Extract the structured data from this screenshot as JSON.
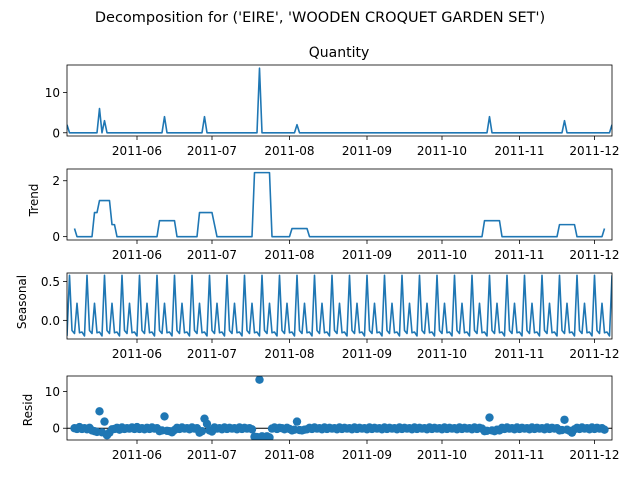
{
  "figure": {
    "suptitle": "Decomposition for ('EIRE', 'WOODEN CROQUET GARDEN SET')",
    "line_color": "#1f77b4"
  },
  "x_ticks": [
    "2011-06",
    "2011-07",
    "2011-08",
    "2011-09",
    "2011-10",
    "2011-11",
    "2011-12"
  ],
  "chart_data": [
    {
      "type": "line",
      "title": "Quantity",
      "ylabel": "",
      "xlim": [
        "2011-05-04",
        "2011-12-08"
      ],
      "ylim": [
        -0.8,
        16.8
      ],
      "yticks": [
        0,
        10
      ],
      "x_ticks": [
        "2011-06-01",
        "2011-07-01",
        "2011-08-01",
        "2011-09-01",
        "2011-10-01",
        "2011-11-01",
        "2011-12-01"
      ],
      "points": [
        [
          "2011-05-04",
          2
        ],
        [
          "2011-05-05",
          0
        ],
        [
          "2011-05-16",
          0
        ],
        [
          "2011-05-17",
          6
        ],
        [
          "2011-05-18",
          0
        ],
        [
          "2011-05-19",
          3
        ],
        [
          "2011-05-20",
          0
        ],
        [
          "2011-06-11",
          0
        ],
        [
          "2011-06-12",
          4
        ],
        [
          "2011-06-13",
          0
        ],
        [
          "2011-06-27",
          0
        ],
        [
          "2011-06-28",
          4
        ],
        [
          "2011-06-29",
          0
        ],
        [
          "2011-07-19",
          0
        ],
        [
          "2011-07-20",
          16
        ],
        [
          "2011-07-21",
          0
        ],
        [
          "2011-08-03",
          0
        ],
        [
          "2011-08-04",
          2
        ],
        [
          "2011-08-05",
          0
        ],
        [
          "2011-10-19",
          0
        ],
        [
          "2011-10-20",
          4
        ],
        [
          "2011-10-21",
          0
        ],
        [
          "2011-11-18",
          0
        ],
        [
          "2011-11-19",
          3
        ],
        [
          "2011-11-20",
          0
        ],
        [
          "2011-12-07",
          0
        ],
        [
          "2011-12-08",
          2
        ]
      ]
    },
    {
      "type": "line",
      "title": "",
      "ylabel": "Trend",
      "xlim": [
        "2011-05-04",
        "2011-12-08"
      ],
      "ylim": [
        -0.12,
        2.42
      ],
      "yticks": [
        0,
        2
      ],
      "x_ticks": [
        "2011-06-01",
        "2011-07-01",
        "2011-08-01",
        "2011-09-01",
        "2011-10-01",
        "2011-11-01",
        "2011-12-01"
      ],
      "points": [
        [
          "2011-05-07",
          0.29
        ],
        [
          "2011-05-08",
          0.0
        ],
        [
          "2011-05-14",
          0.0
        ],
        [
          "2011-05-15",
          0.86
        ],
        [
          "2011-05-16",
          0.86
        ],
        [
          "2011-05-17",
          1.29
        ],
        [
          "2011-05-21",
          1.29
        ],
        [
          "2011-05-22",
          0.43
        ],
        [
          "2011-05-23",
          0.43
        ],
        [
          "2011-05-24",
          0.0
        ],
        [
          "2011-06-09",
          0.0
        ],
        [
          "2011-06-10",
          0.57
        ],
        [
          "2011-06-16",
          0.57
        ],
        [
          "2011-06-17",
          0.0
        ],
        [
          "2011-06-25",
          0.0
        ],
        [
          "2011-06-26",
          0.86
        ],
        [
          "2011-07-01",
          0.86
        ],
        [
          "2011-07-03",
          0.0
        ],
        [
          "2011-07-17",
          0.0
        ],
        [
          "2011-07-18",
          2.29
        ],
        [
          "2011-07-24",
          2.29
        ],
        [
          "2011-07-25",
          0.0
        ],
        [
          "2011-08-01",
          0.0
        ],
        [
          "2011-08-02",
          0.29
        ],
        [
          "2011-08-08",
          0.29
        ],
        [
          "2011-08-09",
          0.0
        ],
        [
          "2011-10-17",
          0.0
        ],
        [
          "2011-10-18",
          0.57
        ],
        [
          "2011-10-24",
          0.57
        ],
        [
          "2011-10-25",
          0.0
        ],
        [
          "2011-11-16",
          0.0
        ],
        [
          "2011-11-17",
          0.43
        ],
        [
          "2011-11-23",
          0.43
        ],
        [
          "2011-11-24",
          0.0
        ],
        [
          "2011-12-04",
          0.0
        ],
        [
          "2011-12-05",
          0.29
        ]
      ]
    },
    {
      "type": "line",
      "title": "",
      "ylabel": "Seasonal",
      "xlim": [
        "2011-05-04",
        "2011-12-08"
      ],
      "ylim": [
        -0.24,
        0.61
      ],
      "yticks": [
        0.0,
        0.5
      ],
      "x_ticks": [
        "2011-06-01",
        "2011-07-01",
        "2011-08-01",
        "2011-09-01",
        "2011-10-01",
        "2011-11-01",
        "2011-12-01"
      ],
      "period": 7,
      "phase_start": "2011-05-04",
      "pattern": [
        -0.2,
        0.58,
        -0.13,
        -0.17,
        0.22,
        -0.16,
        -0.15
      ]
    },
    {
      "type": "scatter",
      "title": "",
      "ylabel": "Resid",
      "xlim": [
        "2011-05-04",
        "2011-12-08"
      ],
      "ylim": [
        -3.2,
        14.2
      ],
      "yticks": [
        0,
        10
      ],
      "x_ticks": [
        "2011-06-01",
        "2011-07-01",
        "2011-08-01",
        "2011-09-01",
        "2011-10-01",
        "2011-11-01",
        "2011-12-01"
      ],
      "baseline": 0,
      "points": [
        [
          "2011-05-07",
          0.0
        ],
        [
          "2011-05-08",
          -0.2
        ],
        [
          "2011-05-09",
          0.3
        ],
        [
          "2011-05-10",
          -0.2
        ],
        [
          "2011-05-11",
          0.0
        ],
        [
          "2011-05-12",
          -0.3
        ],
        [
          "2011-05-13",
          0.1
        ],
        [
          "2011-05-14",
          -0.6
        ],
        [
          "2011-05-15",
          -0.8
        ],
        [
          "2011-05-16",
          -1.0
        ],
        [
          "2011-05-17",
          4.6
        ],
        [
          "2011-05-18",
          -1.1
        ],
        [
          "2011-05-19",
          1.8
        ],
        [
          "2011-05-20",
          -1.9
        ],
        [
          "2011-05-21",
          -1.2
        ],
        [
          "2011-05-22",
          -0.3
        ],
        [
          "2011-05-23",
          -0.2
        ],
        [
          "2011-05-24",
          0.1
        ],
        [
          "2011-05-25",
          -0.4
        ],
        [
          "2011-05-26",
          0.2
        ],
        [
          "2011-05-27",
          -0.2
        ],
        [
          "2011-05-28",
          0.0
        ],
        [
          "2011-05-29",
          -0.1
        ],
        [
          "2011-05-30",
          0.2
        ],
        [
          "2011-05-31",
          -0.2
        ],
        [
          "2011-06-01",
          0.3
        ],
        [
          "2011-06-02",
          -0.2
        ],
        [
          "2011-06-03",
          0.0
        ],
        [
          "2011-06-04",
          -0.3
        ],
        [
          "2011-06-05",
          0.1
        ],
        [
          "2011-06-06",
          -0.2
        ],
        [
          "2011-06-07",
          0.2
        ],
        [
          "2011-06-08",
          -0.1
        ],
        [
          "2011-06-09",
          0.0
        ],
        [
          "2011-06-10",
          -0.8
        ],
        [
          "2011-06-11",
          -0.6
        ],
        [
          "2011-06-12",
          3.2
        ],
        [
          "2011-06-13",
          -0.7
        ],
        [
          "2011-06-14",
          -0.8
        ],
        [
          "2011-06-15",
          -1.1
        ],
        [
          "2011-06-16",
          -0.5
        ],
        [
          "2011-06-17",
          0.1
        ],
        [
          "2011-06-18",
          -0.2
        ],
        [
          "2011-06-19",
          0.2
        ],
        [
          "2011-06-20",
          -0.1
        ],
        [
          "2011-06-21",
          0.0
        ],
        [
          "2011-06-22",
          -0.3
        ],
        [
          "2011-06-23",
          0.2
        ],
        [
          "2011-06-24",
          -0.1
        ],
        [
          "2011-06-25",
          0.0
        ],
        [
          "2011-06-26",
          -1.2
        ],
        [
          "2011-06-27",
          -0.8
        ],
        [
          "2011-06-28",
          2.6
        ],
        [
          "2011-06-29",
          1.2
        ],
        [
          "2011-06-30",
          -0.6
        ],
        [
          "2011-07-01",
          -0.9
        ],
        [
          "2011-07-02",
          0.2
        ],
        [
          "2011-07-03",
          -0.1
        ],
        [
          "2011-07-04",
          0.0
        ],
        [
          "2011-07-05",
          -0.3
        ],
        [
          "2011-07-06",
          0.2
        ],
        [
          "2011-07-07",
          -0.2
        ],
        [
          "2011-07-08",
          0.1
        ],
        [
          "2011-07-09",
          -0.1
        ],
        [
          "2011-07-10",
          0.0
        ],
        [
          "2011-07-11",
          -0.3
        ],
        [
          "2011-07-12",
          0.2
        ],
        [
          "2011-07-13",
          -0.2
        ],
        [
          "2011-07-14",
          0.1
        ],
        [
          "2011-07-15",
          -0.1
        ],
        [
          "2011-07-16",
          0.0
        ],
        [
          "2011-07-17",
          -0.3
        ],
        [
          "2011-07-18",
          -2.3
        ],
        [
          "2011-07-19",
          -2.4
        ],
        [
          "2011-07-20",
          13.2
        ],
        [
          "2011-07-21",
          -2.2
        ],
        [
          "2011-07-22",
          -2.4
        ],
        [
          "2011-07-23",
          -2.2
        ],
        [
          "2011-07-24",
          -2.5
        ],
        [
          "2011-07-25",
          -0.1
        ],
        [
          "2011-07-26",
          0.2
        ],
        [
          "2011-07-27",
          -0.2
        ],
        [
          "2011-07-28",
          0.1
        ],
        [
          "2011-07-29",
          0.0
        ],
        [
          "2011-07-30",
          -0.3
        ],
        [
          "2011-07-31",
          0.1
        ],
        [
          "2011-08-01",
          -0.2
        ],
        [
          "2011-08-02",
          -0.6
        ],
        [
          "2011-08-03",
          -0.4
        ],
        [
          "2011-08-04",
          1.8
        ],
        [
          "2011-08-05",
          -0.5
        ],
        [
          "2011-08-06",
          -0.6
        ],
        [
          "2011-08-07",
          -0.4
        ],
        [
          "2011-08-08",
          -0.3
        ],
        [
          "2011-08-09",
          0.1
        ],
        [
          "2011-08-10",
          -0.2
        ],
        [
          "2011-08-11",
          0.2
        ],
        [
          "2011-08-12",
          -0.1
        ],
        [
          "2011-08-13",
          0.0
        ],
        [
          "2011-08-14",
          -0.3
        ],
        [
          "2011-08-15",
          0.2
        ],
        [
          "2011-08-16",
          -0.2
        ],
        [
          "2011-08-17",
          0.1
        ],
        [
          "2011-08-18",
          -0.1
        ],
        [
          "2011-08-19",
          0.0
        ],
        [
          "2011-08-20",
          -0.3
        ],
        [
          "2011-08-21",
          0.2
        ],
        [
          "2011-08-22",
          -0.2
        ],
        [
          "2011-08-23",
          0.1
        ],
        [
          "2011-08-24",
          -0.1
        ],
        [
          "2011-08-25",
          0.0
        ],
        [
          "2011-08-26",
          -0.3
        ],
        [
          "2011-08-27",
          0.2
        ],
        [
          "2011-08-28",
          -0.2
        ],
        [
          "2011-08-29",
          0.1
        ],
        [
          "2011-08-30",
          -0.1
        ],
        [
          "2011-08-31",
          0.0
        ],
        [
          "2011-09-01",
          -0.3
        ],
        [
          "2011-09-02",
          0.2
        ],
        [
          "2011-09-03",
          -0.2
        ],
        [
          "2011-09-04",
          0.1
        ],
        [
          "2011-09-05",
          -0.1
        ],
        [
          "2011-09-06",
          0.0
        ],
        [
          "2011-09-07",
          -0.3
        ],
        [
          "2011-09-08",
          0.2
        ],
        [
          "2011-09-09",
          -0.2
        ],
        [
          "2011-09-10",
          0.1
        ],
        [
          "2011-09-11",
          -0.1
        ],
        [
          "2011-09-12",
          0.0
        ],
        [
          "2011-09-13",
          -0.3
        ],
        [
          "2011-09-14",
          0.2
        ],
        [
          "2011-09-15",
          -0.2
        ],
        [
          "2011-09-16",
          0.1
        ],
        [
          "2011-09-17",
          -0.1
        ],
        [
          "2011-09-18",
          0.0
        ],
        [
          "2011-09-19",
          -0.3
        ],
        [
          "2011-09-20",
          0.2
        ],
        [
          "2011-09-21",
          -0.2
        ],
        [
          "2011-09-22",
          0.1
        ],
        [
          "2011-09-23",
          -0.1
        ],
        [
          "2011-09-24",
          0.0
        ],
        [
          "2011-09-25",
          -0.3
        ],
        [
          "2011-09-26",
          0.2
        ],
        [
          "2011-09-27",
          -0.2
        ],
        [
          "2011-09-28",
          0.1
        ],
        [
          "2011-09-29",
          -0.1
        ],
        [
          "2011-09-30",
          0.0
        ],
        [
          "2011-10-01",
          -0.3
        ],
        [
          "2011-10-02",
          0.2
        ],
        [
          "2011-10-03",
          -0.2
        ],
        [
          "2011-10-04",
          0.1
        ],
        [
          "2011-10-05",
          -0.1
        ],
        [
          "2011-10-06",
          0.0
        ],
        [
          "2011-10-07",
          -0.3
        ],
        [
          "2011-10-08",
          0.2
        ],
        [
          "2011-10-09",
          -0.2
        ],
        [
          "2011-10-10",
          0.1
        ],
        [
          "2011-10-11",
          -0.1
        ],
        [
          "2011-10-12",
          0.0
        ],
        [
          "2011-10-13",
          -0.3
        ],
        [
          "2011-10-14",
          0.2
        ],
        [
          "2011-10-15",
          -0.2
        ],
        [
          "2011-10-16",
          0.1
        ],
        [
          "2011-10-17",
          -0.1
        ],
        [
          "2011-10-18",
          -0.8
        ],
        [
          "2011-10-19",
          -0.7
        ],
        [
          "2011-10-20",
          2.9
        ],
        [
          "2011-10-21",
          -0.6
        ],
        [
          "2011-10-22",
          -0.8
        ],
        [
          "2011-10-23",
          -0.4
        ],
        [
          "2011-10-24",
          -0.6
        ],
        [
          "2011-10-25",
          0.1
        ],
        [
          "2011-10-26",
          -0.2
        ],
        [
          "2011-10-27",
          0.2
        ],
        [
          "2011-10-28",
          -0.1
        ],
        [
          "2011-10-29",
          0.0
        ],
        [
          "2011-10-30",
          -0.3
        ],
        [
          "2011-10-31",
          0.2
        ],
        [
          "2011-11-01",
          -0.2
        ],
        [
          "2011-11-02",
          0.1
        ],
        [
          "2011-11-03",
          -0.1
        ],
        [
          "2011-11-04",
          0.0
        ],
        [
          "2011-11-05",
          -0.3
        ],
        [
          "2011-11-06",
          0.2
        ],
        [
          "2011-11-07",
          -0.2
        ],
        [
          "2011-11-08",
          0.1
        ],
        [
          "2011-11-09",
          -0.1
        ],
        [
          "2011-11-10",
          0.0
        ],
        [
          "2011-11-11",
          -0.3
        ],
        [
          "2011-11-12",
          0.2
        ],
        [
          "2011-11-13",
          -0.2
        ],
        [
          "2011-11-14",
          0.1
        ],
        [
          "2011-11-15",
          -0.1
        ],
        [
          "2011-11-16",
          0.0
        ],
        [
          "2011-11-17",
          -0.6
        ],
        [
          "2011-11-18",
          -0.5
        ],
        [
          "2011-11-19",
          2.3
        ],
        [
          "2011-11-20",
          -0.4
        ],
        [
          "2011-11-21",
          -0.7
        ],
        [
          "2011-11-22",
          -1.2
        ],
        [
          "2011-11-23",
          -0.3
        ],
        [
          "2011-11-24",
          0.1
        ],
        [
          "2011-11-25",
          -0.2
        ],
        [
          "2011-11-26",
          0.2
        ],
        [
          "2011-11-27",
          -0.1
        ],
        [
          "2011-11-28",
          0.0
        ],
        [
          "2011-11-29",
          -0.3
        ],
        [
          "2011-11-30",
          0.2
        ],
        [
          "2011-12-01",
          -0.2
        ],
        [
          "2011-12-02",
          0.1
        ],
        [
          "2011-12-03",
          -0.1
        ],
        [
          "2011-12-04",
          0.0
        ],
        [
          "2011-12-05",
          -0.4
        ]
      ]
    }
  ]
}
